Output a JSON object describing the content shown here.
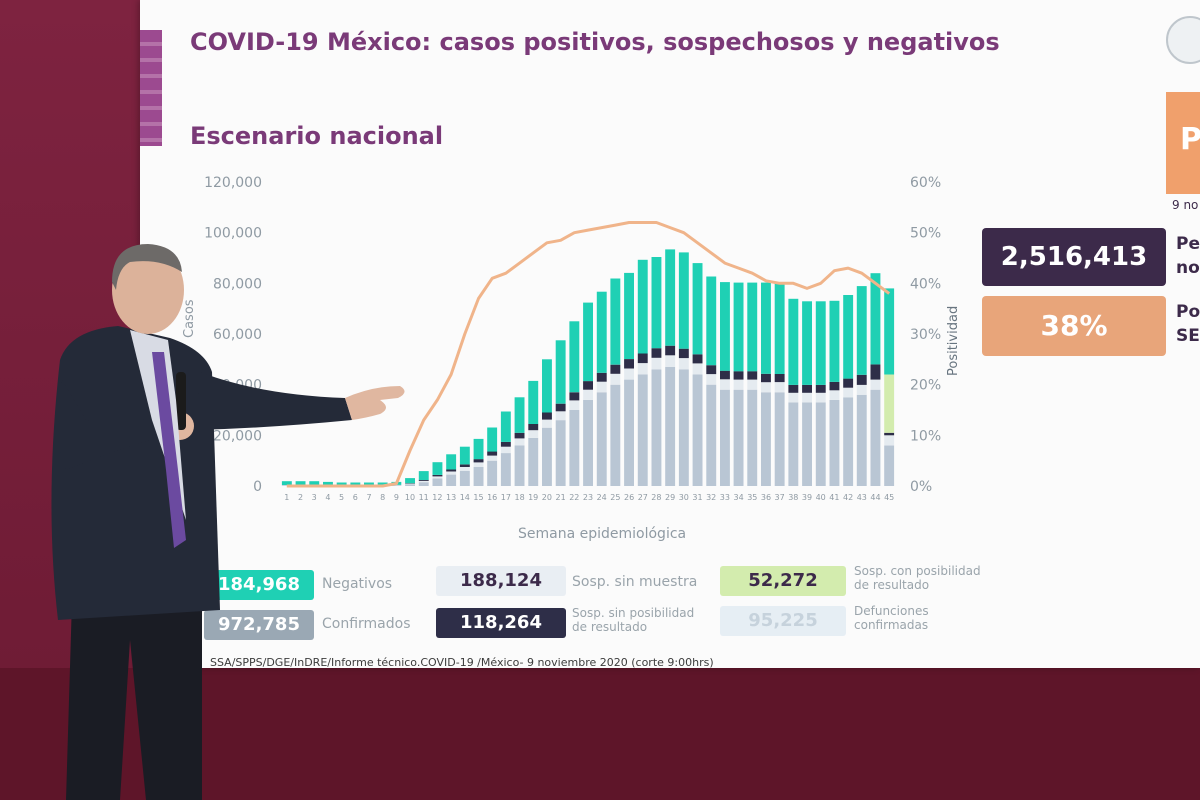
{
  "slide": {
    "title": "COVID-19 México: casos positivos, sospechosos y negativos",
    "subtitle": "Escenario nacional",
    "source": "SSA/SPPS/DGE/InDRE/Informe técnico.COVID-19 /México- 9 noviembre 2020 (corte 9:00hrs)"
  },
  "chart_data": {
    "type": "bar",
    "xlabel": "Semana epidemiológica",
    "ylabel": "Casos",
    "y2label": "Positividad",
    "ylim": [
      0,
      120000
    ],
    "y2lim": [
      0,
      60
    ],
    "yticks": [
      "120,000",
      "100,000",
      "80,000",
      "60,000",
      "40,000",
      "20,000",
      "0"
    ],
    "y2ticks": [
      "60%",
      "50%",
      "40%",
      "30%",
      "20%",
      "10%",
      "0%"
    ],
    "categories": [
      "1",
      "2",
      "3",
      "4",
      "5",
      "6",
      "7",
      "8",
      "9",
      "10",
      "11",
      "12",
      "13",
      "14",
      "15",
      "16",
      "17",
      "18",
      "19",
      "20",
      "21",
      "22",
      "23",
      "24",
      "25",
      "26",
      "27",
      "28",
      "29",
      "30",
      "31",
      "32",
      "33",
      "34",
      "35",
      "36",
      "37",
      "38",
      "39",
      "40",
      "41",
      "42",
      "43",
      "44",
      "45"
    ],
    "series": [
      {
        "name": "Confirmados",
        "color": "#b9c6d4",
        "values": [
          300,
          300,
          300,
          300,
          300,
          300,
          300,
          300,
          300,
          700,
          1500,
          3000,
          4500,
          6000,
          7500,
          10000,
          13000,
          16000,
          19000,
          23000,
          26000,
          30000,
          34000,
          37000,
          40000,
          42000,
          44000,
          46000,
          47000,
          46000,
          44000,
          40000,
          38000,
          38000,
          38000,
          37000,
          37000,
          33000,
          33000,
          33000,
          34000,
          35000,
          36000,
          38000,
          16000
        ]
      },
      {
        "name": "Sosp. sin muestra",
        "color": "#e5ebf0",
        "values": [
          100,
          100,
          100,
          100,
          100,
          100,
          100,
          100,
          100,
          200,
          500,
          800,
          1200,
          1500,
          1800,
          2000,
          2500,
          2800,
          3000,
          3200,
          3500,
          3800,
          4000,
          4200,
          4300,
          4400,
          4500,
          4600,
          4600,
          4500,
          4400,
          4200,
          4100,
          4000,
          4000,
          4000,
          4000,
          3800,
          3800,
          3800,
          3800,
          3800,
          3900,
          4000,
          4000
        ]
      },
      {
        "name": "Sosp. sin posibilidad de resultado",
        "color": "#2e2e48",
        "values": [
          0,
          0,
          0,
          0,
          0,
          0,
          0,
          0,
          0,
          200,
          400,
          600,
          800,
          1000,
          1300,
          1600,
          1900,
          2200,
          2500,
          2800,
          3000,
          3200,
          3400,
          3500,
          3600,
          3700,
          3800,
          3800,
          3800,
          3700,
          3600,
          3500,
          3400,
          3300,
          3300,
          3300,
          3200,
          3100,
          3100,
          3100,
          3300,
          3600,
          4000,
          6000,
          1000
        ]
      },
      {
        "name": "Sosp. con posibilidad de resultado",
        "color": "#d3ecae",
        "values": [
          0,
          0,
          0,
          0,
          0,
          0,
          0,
          0,
          0,
          0,
          0,
          0,
          0,
          0,
          0,
          0,
          0,
          0,
          0,
          0,
          0,
          0,
          0,
          0,
          0,
          0,
          0,
          0,
          0,
          0,
          0,
          0,
          0,
          0,
          0,
          0,
          0,
          0,
          0,
          0,
          0,
          0,
          0,
          0,
          23000
        ]
      },
      {
        "name": "Negativos",
        "color": "#1fd0b4",
        "values": [
          1500,
          1500,
          1500,
          1200,
          1000,
          1000,
          1000,
          1000,
          1200,
          2000,
          3500,
          5000,
          6000,
          7000,
          8000,
          9500,
          12000,
          14000,
          17000,
          21000,
          25000,
          28000,
          31000,
          32000,
          34000,
          34000,
          37000,
          36000,
          38000,
          38000,
          36000,
          35000,
          35000,
          35000,
          35000,
          36000,
          36000,
          34000,
          33000,
          33000,
          32000,
          33000,
          35000,
          36000,
          34000
        ]
      }
    ],
    "positividad": [
      0,
      0,
      0,
      0,
      0,
      0,
      0,
      0,
      0.5,
      7,
      13,
      17,
      22,
      30,
      37,
      41,
      42,
      44,
      46,
      48,
      48.5,
      50,
      50.5,
      51,
      51.5,
      52,
      52,
      52,
      51,
      50,
      48,
      46,
      44,
      43,
      42,
      40.5,
      40,
      40,
      39,
      40,
      42.5,
      43,
      42,
      40,
      38
    ],
    "legend": [
      {
        "value": "184,968",
        "label": "Negativos"
      },
      {
        "value": "188,124",
        "label": "Sosp. sin muestra"
      },
      {
        "value": "52,272",
        "label": "Sosp. con posibilidad de resultado"
      },
      {
        "value": "972,785",
        "label": "Confirmados"
      },
      {
        "value": "118,264",
        "label": "Sosp. sin posibilidad de resultado"
      },
      {
        "value": "95,225",
        "label": "Defunciones confirmadas"
      }
    ]
  },
  "kpis": {
    "total": "2,516,413",
    "total_label_1": "Pe",
    "total_label_2": "no",
    "positividad": "38%",
    "pos_label_1": "Po",
    "pos_label_2": "SE",
    "corner_letter": "P",
    "corner_date": "9 no"
  },
  "colors": {
    "wall": "#7a1f3a",
    "title": "#7a3a78",
    "teal": "#1fd0b4",
    "navy": "#3c2a4a",
    "orange": "#e8a57a",
    "line": "#f0b48a"
  }
}
